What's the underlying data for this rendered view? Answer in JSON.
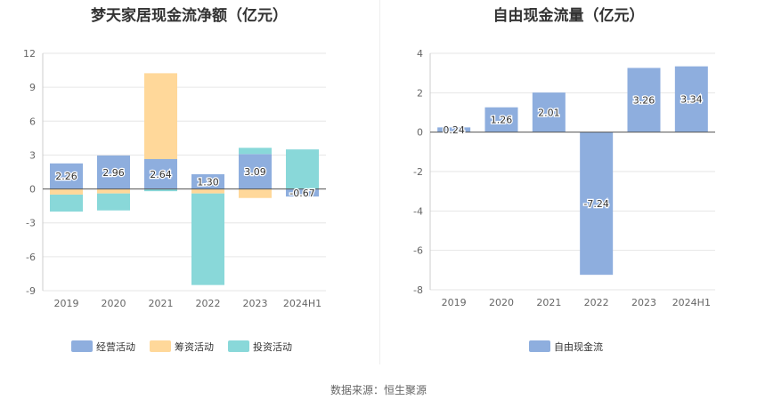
{
  "colors": {
    "operating": "#8eaede",
    "financing": "#ffd89a",
    "investing": "#89d8d9",
    "free": "#8eaede",
    "axis": "#999999",
    "grid": "#e6e6e6"
  },
  "source": "数据来源：恒生聚源",
  "chart_data": [
    {
      "type": "bar",
      "stacked": true,
      "title": "梦天家居现金流净额（亿元）",
      "categories": [
        "2019",
        "2020",
        "2021",
        "2022",
        "2023",
        "2024H1"
      ],
      "ylim": [
        -9,
        12
      ],
      "yticks": [
        -9,
        -6,
        -3,
        0,
        3,
        6,
        9,
        12
      ],
      "grid": true,
      "legend": "bottom",
      "series": [
        {
          "name": "经营活动",
          "key": "operating",
          "values": [
            2.26,
            2.96,
            2.64,
            1.3,
            3.09,
            -0.67
          ]
        },
        {
          "name": "筹资活动",
          "key": "financing",
          "values": [
            -0.5,
            -0.4,
            7.6,
            -0.4,
            -0.8,
            0.0
          ]
        },
        {
          "name": "投资活动",
          "key": "investing",
          "values": [
            -1.5,
            -1.5,
            -0.2,
            -8.1,
            0.55,
            3.5
          ]
        }
      ],
      "data_labels": [
        "2.26",
        "2.96",
        "2.64",
        "1.30",
        "3.09",
        "-0.67"
      ]
    },
    {
      "type": "bar",
      "title": "自由现金流量（亿元）",
      "categories": [
        "2019",
        "2020",
        "2021",
        "2022",
        "2023",
        "2024H1"
      ],
      "ylim": [
        -8,
        4
      ],
      "yticks": [
        -8,
        -6,
        -4,
        -2,
        0,
        2,
        4
      ],
      "grid": true,
      "legend": "bottom",
      "series": [
        {
          "name": "自由现金流",
          "key": "free",
          "values": [
            0.24,
            1.26,
            2.01,
            -7.24,
            3.26,
            3.34
          ]
        }
      ],
      "data_labels": [
        "0.24",
        "1.26",
        "2.01",
        "-7.24",
        "3.26",
        "3.34"
      ]
    }
  ]
}
